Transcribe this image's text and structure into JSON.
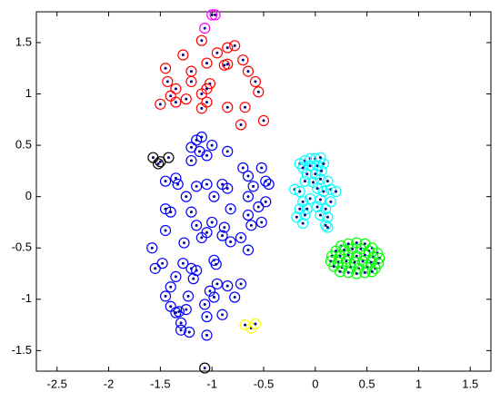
{
  "chart_data": {
    "type": "scatter",
    "xlim": [
      -2.7,
      1.7
    ],
    "ylim": [
      -1.7,
      1.8
    ],
    "xticks": [
      -2.5,
      -2,
      -1.5,
      -1,
      -0.5,
      0,
      0.5,
      1,
      1.5
    ],
    "yticks": [
      -1.5,
      -1,
      -0.5,
      0,
      0.5,
      1,
      1.5
    ],
    "grid": false,
    "dot_color": "#00008b",
    "series": [
      {
        "color": "#ff00ff",
        "x": [
          -1.0,
          -0.97,
          -1.07
        ],
        "y": [
          1.77,
          1.77,
          1.64
        ]
      },
      {
        "color": "#ff0000",
        "x": [
          -1.1,
          -0.85,
          -0.78,
          -1.28,
          -0.95,
          -1.45,
          -1.2,
          -1.05,
          -0.88,
          -0.85,
          -0.7,
          -0.65,
          -1.43,
          -1.35,
          -1.2,
          -1.02,
          -1.1,
          -1.05,
          -0.58,
          -1.4,
          -1.25,
          -0.55,
          -1.5,
          -1.35,
          -1.05,
          -0.85,
          -1.1,
          -0.68,
          -0.5,
          -0.72
        ],
        "y": [
          1.52,
          1.45,
          1.47,
          1.38,
          1.4,
          1.25,
          1.22,
          1.3,
          1.28,
          1.29,
          1.33,
          1.22,
          1.12,
          1.05,
          1.12,
          1.1,
          1.0,
          1.05,
          1.12,
          0.98,
          0.95,
          1.02,
          0.9,
          0.92,
          0.92,
          0.87,
          0.86,
          0.87,
          0.74,
          0.7
        ]
      },
      {
        "color": "#000000",
        "x": [
          -1.57,
          -1.5,
          -1.52,
          -1.42,
          -1.07
        ],
        "y": [
          0.38,
          0.34,
          0.32,
          0.38,
          -1.67
        ]
      },
      {
        "color": "#0000ff",
        "x": [
          -1.1,
          -1.15,
          -1.0,
          -1.2,
          -0.85,
          -1.12,
          -1.05,
          -1.2,
          -0.7,
          -0.52,
          -0.65,
          -0.48,
          -1.35,
          -1.45,
          -1.33,
          -1.05,
          -1.15,
          -0.9,
          -0.85,
          -0.6,
          -0.45,
          -1.25,
          -0.98,
          -0.65,
          -0.48,
          -1.45,
          -1.4,
          -1.2,
          -0.82,
          -0.55,
          -0.65,
          -1.15,
          -1.0,
          -0.88,
          -1.45,
          -0.62,
          -0.52,
          -1.05,
          -1.1,
          -0.9,
          -0.72,
          -1.27,
          -0.82,
          -0.65,
          -1.58,
          -1.48,
          -1.55,
          -1.28,
          -1.2,
          -1.15,
          -0.98,
          -0.96,
          -1.35,
          -1.18,
          -1.4,
          -0.95,
          -0.85,
          -0.72,
          -1.45,
          -1.23,
          -1.02,
          -0.98,
          -0.78,
          -1.4,
          -1.25,
          -1.07,
          -1.35,
          -1.32,
          -1.05,
          -1.3,
          -1.3,
          -0.9,
          -1.05,
          -1.22
        ],
        "y": [
          0.58,
          0.55,
          0.5,
          0.48,
          0.44,
          0.44,
          0.4,
          0.35,
          0.28,
          0.28,
          0.2,
          0.15,
          0.18,
          0.15,
          0.12,
          0.12,
          0.1,
          0.12,
          0.08,
          0.1,
          0.12,
          0.0,
          0.0,
          0.0,
          -0.05,
          -0.12,
          -0.15,
          -0.15,
          -0.12,
          -0.1,
          -0.18,
          -0.28,
          -0.25,
          -0.3,
          -0.33,
          -0.28,
          -0.25,
          -0.35,
          -0.4,
          -0.38,
          -0.4,
          -0.45,
          -0.44,
          -0.52,
          -0.5,
          -0.65,
          -0.7,
          -0.65,
          -0.7,
          -0.72,
          -0.62,
          -0.66,
          -0.78,
          -0.8,
          -0.88,
          -0.85,
          -0.87,
          -0.85,
          -0.97,
          -0.97,
          -0.92,
          -0.98,
          -0.98,
          -1.07,
          -1.1,
          -1.05,
          -1.13,
          -1.12,
          -1.17,
          -1.23,
          -1.3,
          -1.15,
          -1.35,
          -1.32
        ]
      },
      {
        "color": "#00ffff",
        "x": [
          -0.15,
          -0.1,
          -0.05,
          0.0,
          0.05,
          -0.12,
          -0.05,
          0.02,
          0.08,
          -0.08,
          0.0,
          0.06,
          -0.1,
          -0.02,
          0.05,
          0.12,
          -0.2,
          -0.15,
          0.02,
          0.08,
          0.15,
          0.2,
          -0.12,
          -0.05,
          0.05,
          0.15,
          -0.15,
          -0.08,
          0.02,
          0.1,
          -0.18,
          -0.1,
          0.05,
          0.12,
          -0.12,
          0.1,
          0.12
        ],
        "y": [
          0.32,
          0.35,
          0.37,
          0.37,
          0.38,
          0.28,
          0.3,
          0.3,
          0.32,
          0.22,
          0.22,
          0.25,
          0.15,
          0.14,
          0.17,
          0.15,
          0.07,
          0.05,
          0.08,
          0.05,
          0.07,
          0.05,
          -0.05,
          -0.02,
          -0.03,
          -0.05,
          -0.12,
          -0.12,
          -0.1,
          -0.12,
          -0.2,
          -0.18,
          -0.18,
          -0.2,
          -0.26,
          -0.28,
          -0.3
        ]
      },
      {
        "color": "#00ff00",
        "x": [
          0.25,
          0.32,
          0.4,
          0.48,
          0.55,
          0.2,
          0.28,
          0.36,
          0.44,
          0.52,
          0.6,
          0.16,
          0.24,
          0.32,
          0.4,
          0.48,
          0.56,
          0.62,
          0.15,
          0.22,
          0.3,
          0.38,
          0.46,
          0.54,
          0.61,
          0.18,
          0.26,
          0.34,
          0.42,
          0.5,
          0.58,
          0.24,
          0.32,
          0.4,
          0.48,
          0.55
        ],
        "y": [
          -0.48,
          -0.46,
          -0.45,
          -0.46,
          -0.5,
          -0.53,
          -0.52,
          -0.51,
          -0.51,
          -0.53,
          -0.55,
          -0.58,
          -0.58,
          -0.57,
          -0.58,
          -0.57,
          -0.59,
          -0.6,
          -0.63,
          -0.64,
          -0.63,
          -0.64,
          -0.63,
          -0.64,
          -0.65,
          -0.68,
          -0.69,
          -0.69,
          -0.7,
          -0.69,
          -0.7,
          -0.73,
          -0.74,
          -0.75,
          -0.74,
          -0.73
        ]
      },
      {
        "color": "#ffff00",
        "x": [
          -0.68,
          -0.62,
          -0.58
        ],
        "y": [
          -1.25,
          -1.28,
          -1.24
        ]
      }
    ]
  }
}
